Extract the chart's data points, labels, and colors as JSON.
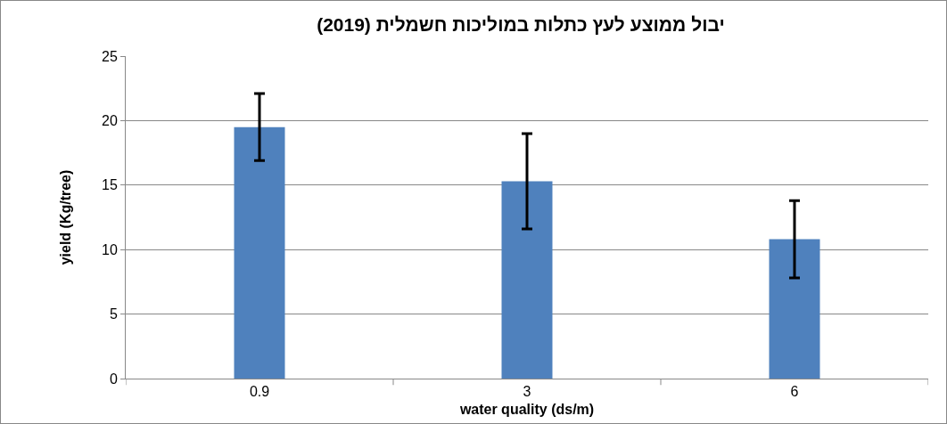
{
  "chart_data": {
    "type": "bar",
    "title": "יבול ממוצע לעץ כתלות במוליכות חשמלית (2019)",
    "xlabel": "water quality (ds/m)",
    "ylabel": "yield (Kg/tree)",
    "categories": [
      "0.9",
      "3",
      "6"
    ],
    "values": [
      19.5,
      15.3,
      10.8
    ],
    "errors": [
      2.6,
      3.7,
      3.0
    ],
    "color": "#4f81bd",
    "ylim": [
      0,
      25
    ],
    "yticks": [
      0,
      5,
      10,
      15,
      20,
      25
    ],
    "grid": "y"
  }
}
